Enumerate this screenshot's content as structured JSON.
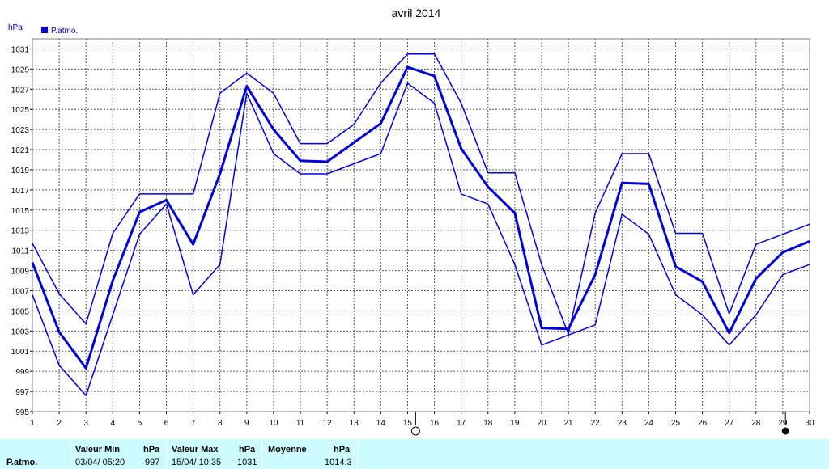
{
  "chart_data": {
    "type": "line",
    "title": "avril 2014",
    "ylabel": "hPa",
    "xlabel": "",
    "legend": {
      "label": "P.atmo.",
      "placement": "top-left",
      "color": "#0000ff"
    },
    "x": [
      1,
      2,
      3,
      4,
      5,
      6,
      7,
      8,
      9,
      10,
      11,
      12,
      13,
      14,
      15,
      16,
      17,
      18,
      19,
      20,
      21,
      22,
      23,
      24,
      25,
      26,
      27,
      28,
      29,
      30
    ],
    "xlim": [
      1,
      30
    ],
    "ylim": [
      995,
      1032
    ],
    "yticks": [
      995,
      997,
      999,
      1001,
      1003,
      1005,
      1007,
      1009,
      1011,
      1013,
      1015,
      1017,
      1019,
      1021,
      1023,
      1025,
      1027,
      1029,
      1031
    ],
    "grid": true,
    "moon_phases": [
      {
        "day": 15.3,
        "phase": "full-moon"
      },
      {
        "day": 29.1,
        "phase": "new-moon"
      }
    ],
    "series": [
      {
        "role": "max",
        "values": [
          1011.7,
          1006.7,
          1003.7,
          1012.7,
          1016.6,
          1016.6,
          1016.6,
          1026.6,
          1028.6,
          1026.6,
          1021.6,
          1021.6,
          1023.5,
          1027.6,
          1030.5,
          1030.5,
          1025.6,
          1018.7,
          1018.7,
          1009.6,
          1002.7,
          1014.7,
          1020.6,
          1020.6,
          1012.7,
          1012.7,
          1004.7,
          1011.6,
          1012.6,
          1013.6
        ],
        "color": "#0000dd",
        "width": 1.5
      },
      {
        "role": "mean",
        "values": [
          1009.8,
          1002.9,
          999.3,
          1008.0,
          1014.8,
          1016.0,
          1011.6,
          1018.6,
          1027.3,
          1023.0,
          1019.9,
          1019.8,
          1021.7,
          1023.6,
          1029.2,
          1028.3,
          1021.1,
          1017.3,
          1014.7,
          1003.3,
          1003.2,
          1008.6,
          1017.7,
          1017.6,
          1009.4,
          1007.9,
          1002.8,
          1008.2,
          1010.8,
          1011.9
        ],
        "color": "#0000dd",
        "width": 3
      },
      {
        "role": "min",
        "values": [
          1006.6,
          999.6,
          996.6,
          1004.6,
          1012.6,
          1015.6,
          1006.6,
          1009.6,
          1026.6,
          1020.6,
          1018.6,
          1018.6,
          1019.6,
          1020.6,
          1027.6,
          1025.6,
          1016.6,
          1015.6,
          1009.6,
          1001.6,
          1002.6,
          1003.6,
          1014.6,
          1012.6,
          1006.6,
          1004.6,
          1001.6,
          1004.6,
          1008.6,
          1009.6
        ],
        "color": "#0000dd",
        "width": 1.5
      }
    ]
  },
  "footer": {
    "label": "P.atmo.",
    "min_header": "Valeur Min",
    "min_unit": "hPa",
    "min_date": "03/04/  05:20",
    "min_value": "997",
    "max_header": "Valeur Max",
    "max_unit": "hPa",
    "max_date": "15/04/  10:35",
    "max_value": "1031",
    "mean_header": "Moyenne",
    "mean_unit": "hPa",
    "mean_value": "1014.3"
  }
}
